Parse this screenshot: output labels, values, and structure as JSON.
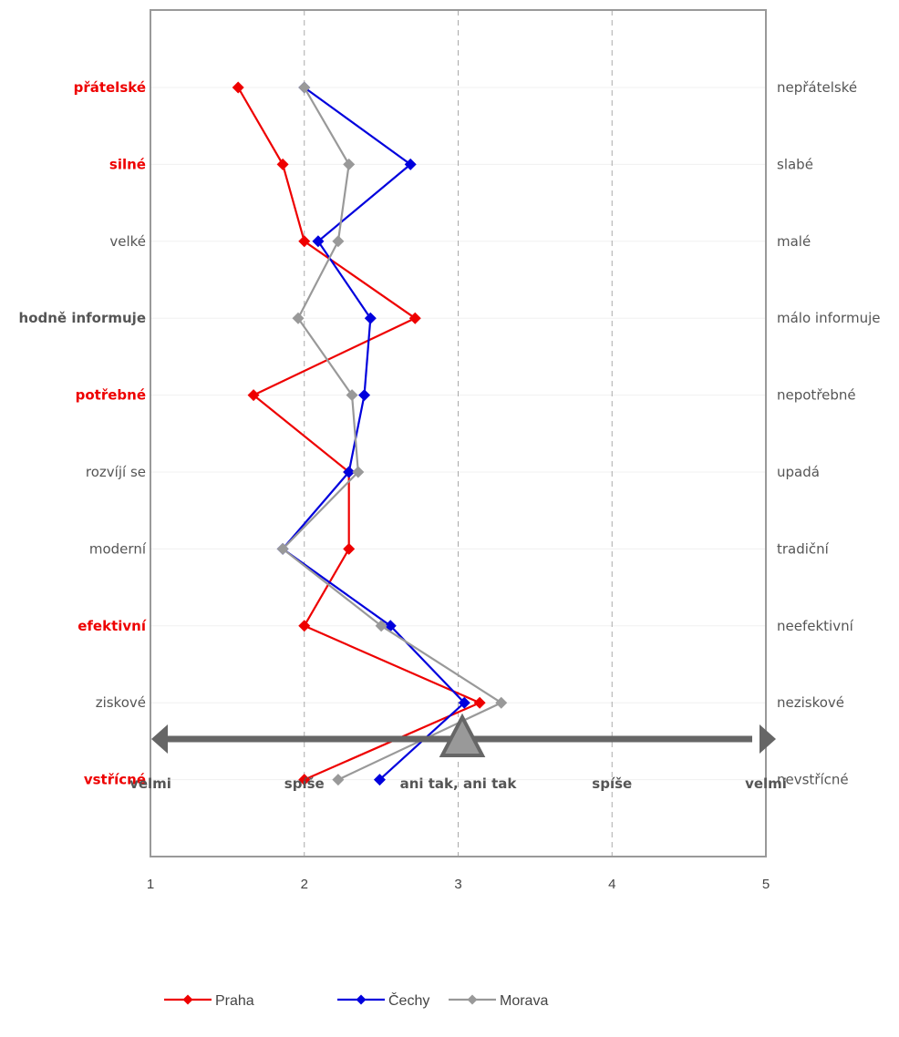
{
  "chart_data": {
    "type": "line",
    "title": "",
    "xlabel": "",
    "ylabel": "",
    "xlim": [
      1,
      5
    ],
    "xticks": [
      1,
      2,
      3,
      4,
      5
    ],
    "grid": "vertical dashed at 2, 3, 4",
    "categories": [
      {
        "left": "přátelské",
        "right": "nepřátelské",
        "highlight": true
      },
      {
        "left": "silné",
        "right": "slabé",
        "highlight": true
      },
      {
        "left": "velké",
        "right": "malé",
        "highlight": false
      },
      {
        "left": "hodně informuje",
        "right": "málo informuje",
        "highlight": "bold"
      },
      {
        "left": "potřebné",
        "right": "nepotřebné",
        "highlight": true
      },
      {
        "left": "rozvíjí se",
        "right": "upadá",
        "highlight": false
      },
      {
        "left": "moderní",
        "right": "tradiční",
        "highlight": false
      },
      {
        "left": "efektivní",
        "right": "neefektivní",
        "highlight": true
      },
      {
        "left": "ziskové",
        "right": "neziskové",
        "highlight": false
      },
      {
        "left": "vstřícné",
        "right": "nevstřícné",
        "highlight": true
      }
    ],
    "series": [
      {
        "name": "Praha",
        "color": "#ee0000",
        "values": [
          1.57,
          1.86,
          2.0,
          2.72,
          1.67,
          2.29,
          2.29,
          2.0,
          3.14,
          2.0
        ]
      },
      {
        "name": "Čechy",
        "color": "#0000dd",
        "values": [
          2.0,
          2.69,
          2.09,
          2.43,
          2.39,
          2.29,
          1.86,
          2.56,
          3.04,
          2.49
        ]
      },
      {
        "name": "Morava",
        "color": "#999999",
        "values": [
          2.0,
          2.29,
          2.22,
          1.96,
          2.31,
          2.35,
          1.86,
          2.5,
          3.28,
          2.22
        ]
      }
    ],
    "scale_labels": [
      "velmi",
      "spíše",
      "ani tak, ani tak",
      "spíše",
      "velmi"
    ],
    "legend_position": "bottom",
    "colors": {
      "highlight_label": "#ee0000",
      "plain_label": "#555555",
      "axis": "#999999",
      "arrow": "#666666"
    }
  }
}
